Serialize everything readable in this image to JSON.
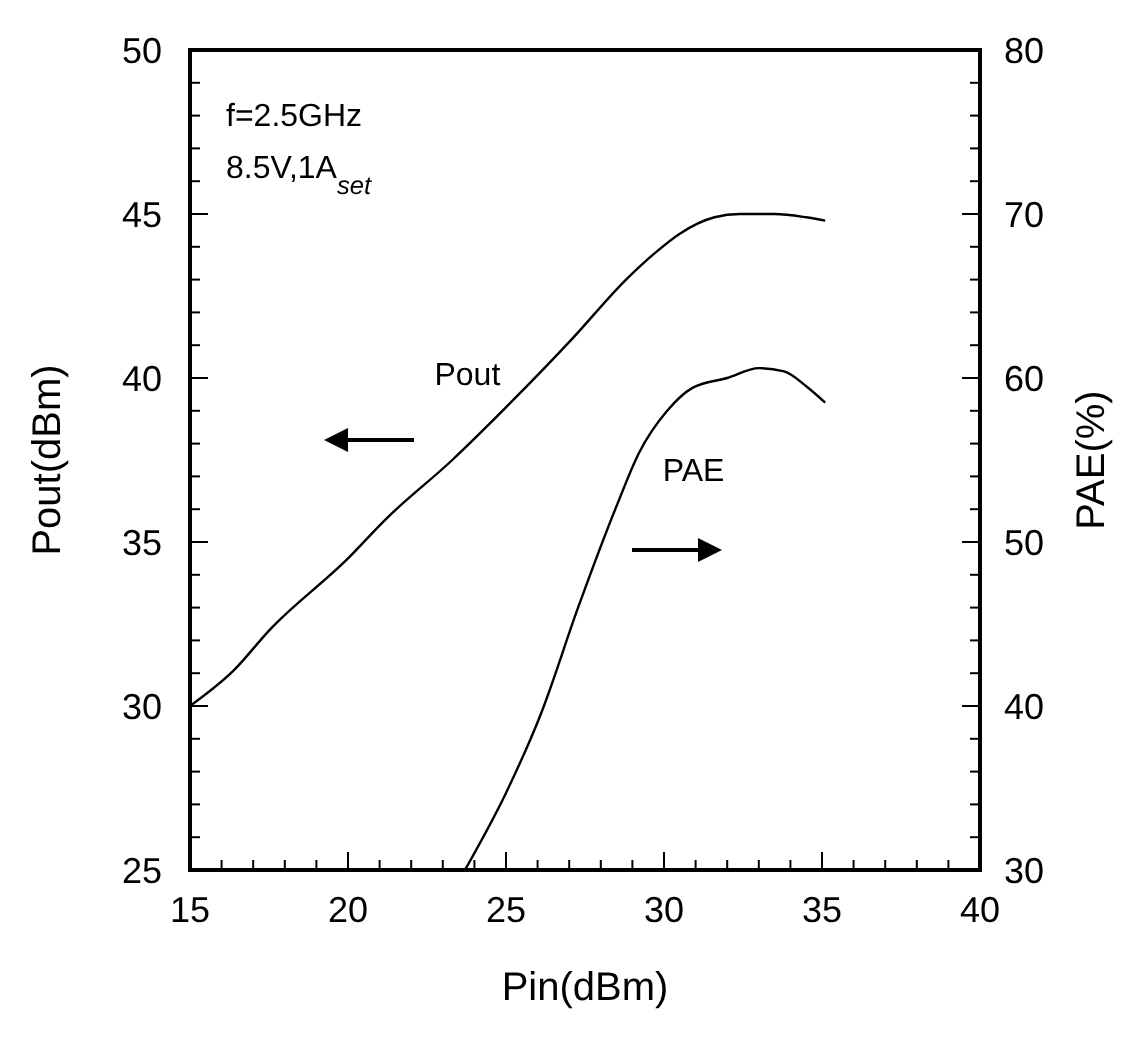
{
  "chart_data": {
    "type": "line",
    "xlabel": "Pin(dBm)",
    "ylabel": "Pout(dBm)",
    "y2label": "PAE(%)",
    "xlim": [
      15,
      40
    ],
    "ylim": [
      25,
      50
    ],
    "y2lim": [
      30,
      80
    ],
    "xticks": [
      15,
      {
        "value": 16,
        "label": null
      },
      {
        "value": 17,
        "label": null
      },
      {
        "value": 18,
        "label": null
      },
      {
        "value": 19,
        "label": null
      },
      20,
      {
        "value": 21,
        "label": null
      },
      {
        "value": 22,
        "label": null
      },
      {
        "value": 23,
        "label": null
      },
      {
        "value": 24,
        "label": null
      },
      25,
      {
        "value": 26,
        "label": null
      },
      {
        "value": 27,
        "label": null
      },
      {
        "value": 28,
        "label": null
      },
      {
        "value": 29,
        "label": null
      },
      30,
      {
        "value": 31,
        "label": null
      },
      {
        "value": 32,
        "label": null
      },
      {
        "value": 33,
        "label": null
      },
      {
        "value": 34,
        "label": null
      },
      35,
      {
        "value": 36,
        "label": null
      },
      {
        "value": 37,
        "label": null
      },
      {
        "value": 38,
        "label": null
      },
      {
        "value": 39,
        "label": null
      },
      40
    ],
    "yticks": [
      25,
      {
        "value": 26,
        "label": null
      },
      {
        "value": 27,
        "label": null
      },
      {
        "value": 28,
        "label": null
      },
      {
        "value": 29,
        "label": null
      },
      30,
      {
        "value": 31,
        "label": null
      },
      {
        "value": 32,
        "label": null
      },
      {
        "value": 33,
        "label": null
      },
      {
        "value": 34,
        "label": null
      },
      35,
      {
        "value": 36,
        "label": null
      },
      {
        "value": 37,
        "label": null
      },
      {
        "value": 38,
        "label": null
      },
      {
        "value": 39,
        "label": null
      },
      40,
      {
        "value": 41,
        "label": null
      },
      {
        "value": 42,
        "label": null
      },
      {
        "value": 43,
        "label": null
      },
      {
        "value": 44,
        "label": null
      },
      45,
      {
        "value": 46,
        "label": null
      },
      {
        "value": 47,
        "label": null
      },
      {
        "value": 48,
        "label": null
      },
      {
        "value": 49,
        "label": null
      },
      50
    ],
    "y2ticks": [
      30,
      {
        "value": 32,
        "label": null
      },
      {
        "value": 34,
        "label": null
      },
      {
        "value": 36,
        "label": null
      },
      {
        "value": 38,
        "label": null
      },
      40,
      {
        "value": 42,
        "label": null
      },
      {
        "value": 44,
        "label": null
      },
      {
        "value": 46,
        "label": null
      },
      {
        "value": 48,
        "label": null
      },
      50,
      {
        "value": 52,
        "label": null
      },
      {
        "value": 54,
        "label": null
      },
      {
        "value": 56,
        "label": null
      },
      {
        "value": 58,
        "label": null
      },
      60,
      {
        "value": 62,
        "label": null
      },
      {
        "value": 64,
        "label": null
      },
      {
        "value": 66,
        "label": null
      },
      {
        "value": 68,
        "label": null
      },
      70,
      {
        "value": 72,
        "label": null
      },
      {
        "value": 74,
        "label": null
      },
      {
        "value": 76,
        "label": null
      },
      {
        "value": 78,
        "label": null
      },
      80
    ],
    "grid": false,
    "marker": "none",
    "line_style": "solid",
    "series": [
      {
        "name": "Pout",
        "color": "#000000",
        "x": [
          15,
          16.4,
          17.5,
          20,
          21.2,
          23.3,
          25.2,
          27.1,
          28.8,
          29.7,
          30.5,
          31.6,
          32.4,
          33.5,
          34.5,
          35.1
        ],
        "values": [
          30,
          31.1,
          32.3,
          34.5,
          35.7,
          37.5,
          39.3,
          41.2,
          43,
          43.8,
          44.4,
          44.9,
          45,
          45,
          44.9,
          44.8
        ]
      },
      {
        "name": "PAE",
        "color": "#000000",
        "axis": "y2",
        "x": [
          23.7,
          25,
          26.1,
          27.3,
          28.5,
          29.2,
          30.1,
          30.9,
          32,
          33,
          33.8,
          34.5,
          35.1
        ],
        "values": [
          30,
          34.7,
          39.5,
          46.1,
          52.2,
          55.4,
          58,
          59.4,
          60,
          60.6,
          60.4,
          59.5,
          58.5
        ]
      }
    ],
    "annotations": [
      "f=2.5GHz",
      "8.5V,1A$_{set}$"
    ]
  }
}
